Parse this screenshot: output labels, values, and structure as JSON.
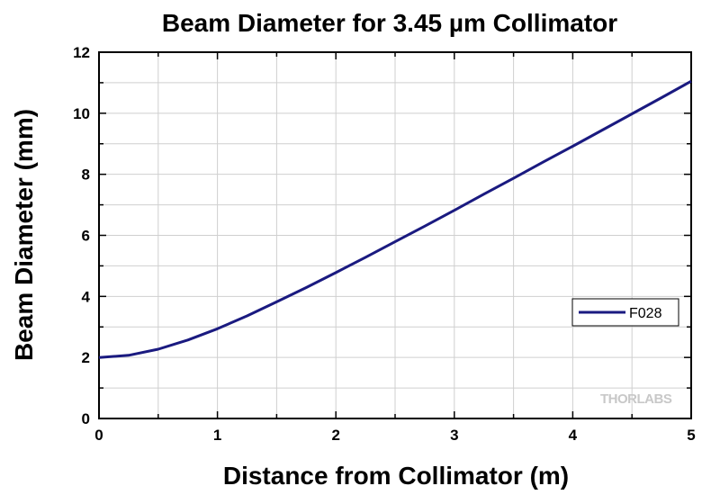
{
  "chart_data": {
    "type": "line",
    "title": "Beam Diameter for 3.45 µm Collimator",
    "xlabel": "Distance from Collimator (m)",
    "ylabel": "Beam Diameter (mm)",
    "xlim": [
      0,
      5
    ],
    "ylim": [
      0,
      12
    ],
    "xticks": [
      "0",
      "1",
      "2",
      "3",
      "4",
      "5"
    ],
    "yticks": [
      "0",
      "2",
      "4",
      "6",
      "8",
      "10",
      "12"
    ],
    "grid": true,
    "legend_position": "right",
    "series": [
      {
        "name": "F028",
        "color": "#1a1a80",
        "x": [
          0,
          0.25,
          0.5,
          0.75,
          1.0,
          1.25,
          1.5,
          1.75,
          2.0,
          2.25,
          2.5,
          2.75,
          3.0,
          3.25,
          3.5,
          3.75,
          4.0,
          4.25,
          4.5,
          4.75,
          5.0
        ],
        "y": [
          2.0,
          2.07,
          2.27,
          2.57,
          2.94,
          3.36,
          3.82,
          4.29,
          4.78,
          5.28,
          5.79,
          6.3,
          6.82,
          7.35,
          7.87,
          8.4,
          8.92,
          9.45,
          9.98,
          10.51,
          11.05
        ]
      }
    ]
  },
  "watermark": "THORLABS"
}
